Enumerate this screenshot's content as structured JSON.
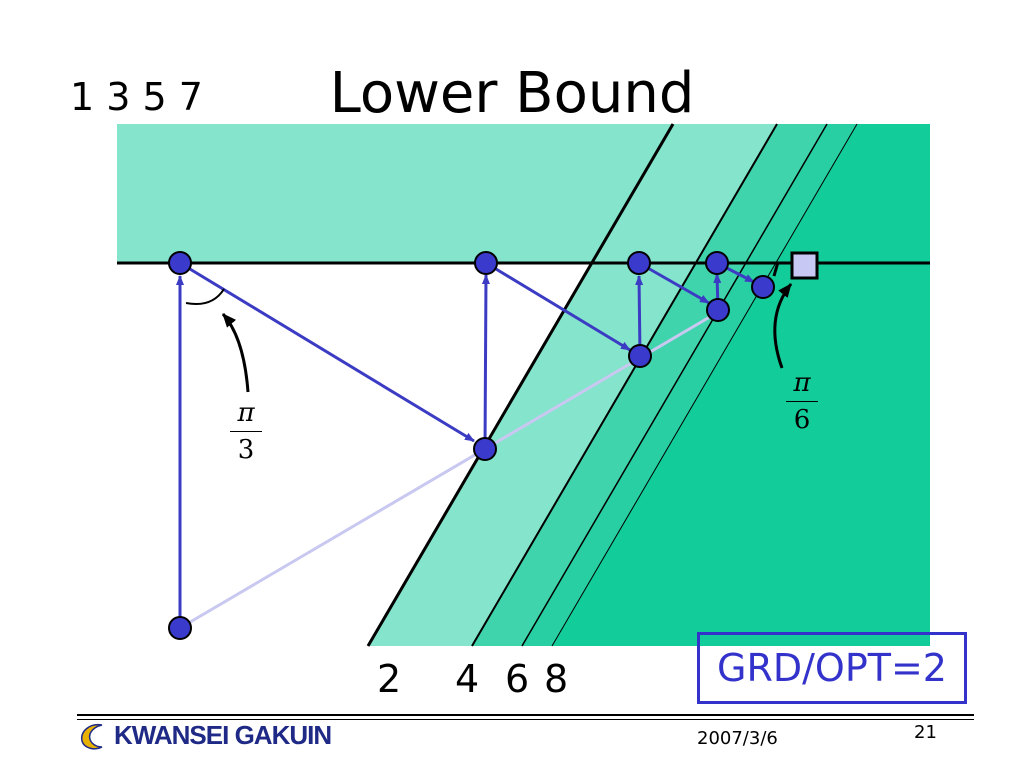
{
  "slide": {
    "title": "Lower Bound",
    "top_numbers": "1 3 5 7",
    "bottom_numbers": [
      "2",
      "4",
      "6",
      "8"
    ],
    "angle_left": {
      "numerator": "π",
      "denominator": "3"
    },
    "angle_right": {
      "numerator": "π",
      "denominator": "6"
    },
    "ratio": "GRD/OPT=2"
  },
  "footer": {
    "logo_text": "KWANSEI GAKUIN",
    "date": "2007/3/6",
    "page_number": "21"
  },
  "colors": {
    "region_light": "#84e4cc",
    "region_mid": "#40d4ac",
    "region_dark": "#12cc9a",
    "point_fill": "#3a3acc",
    "arrow": "#3b3bc4",
    "faint_line": "#c8c8f0",
    "target_fill": "#c8c8f4",
    "ratio_border": "#3333cc",
    "logo_blue": "#1f2a86",
    "logo_moon": "#e8b000"
  },
  "icons": [
    "crescent-moon-icon",
    "target-square-icon"
  ]
}
